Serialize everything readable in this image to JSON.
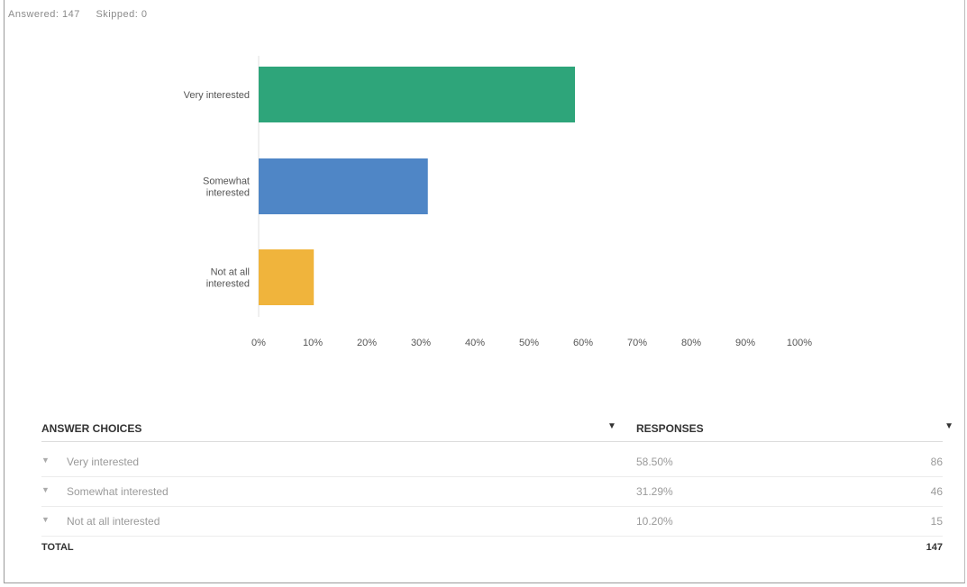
{
  "meta": {
    "answered": "Answered: 147",
    "skipped": "Skipped: 0"
  },
  "colors": {
    "very": "#2ea57a",
    "somewhat": "#4f86c6",
    "notatall": "#f0b43c"
  },
  "chart_data": {
    "type": "bar",
    "orientation": "horizontal",
    "categories": [
      "Very interested",
      "Somewhat interested",
      "Not at all interested"
    ],
    "category_lines": [
      [
        "Very interested"
      ],
      [
        "Somewhat",
        "interested"
      ],
      [
        "Not at all",
        "interested"
      ]
    ],
    "values": [
      58.5,
      31.29,
      10.2
    ],
    "xlim": [
      0,
      100
    ],
    "xticks": [
      "0%",
      "10%",
      "20%",
      "30%",
      "40%",
      "50%",
      "60%",
      "70%",
      "80%",
      "90%",
      "100%"
    ],
    "title": "",
    "xlabel": "",
    "ylabel": "",
    "grid": false
  },
  "table": {
    "header_choices": "ANSWER CHOICES",
    "header_responses": "RESPONSES",
    "rows": [
      {
        "choice": "Very interested",
        "pct": "58.50%",
        "count": "86"
      },
      {
        "choice": "Somewhat interested",
        "pct": "31.29%",
        "count": "46"
      },
      {
        "choice": "Not at all interested",
        "pct": "10.20%",
        "count": "15"
      }
    ],
    "total_label": "TOTAL",
    "total_value": "147"
  }
}
